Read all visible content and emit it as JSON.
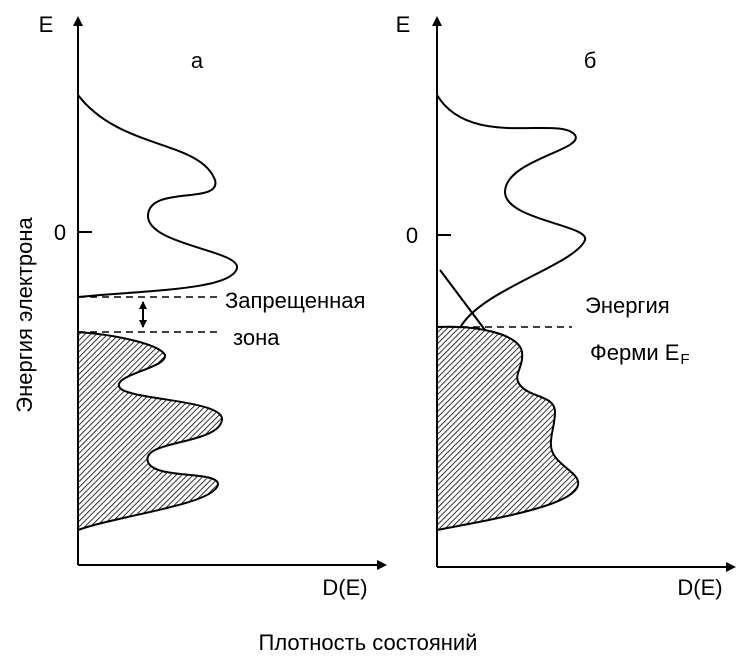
{
  "y_axis_label": "Энергия электрона",
  "x_axis_caption": "Плотность состояний",
  "panels": [
    {
      "label": "а",
      "y_axis": "E",
      "zero": "0",
      "x_axis": "D(E)",
      "annotation": [
        "Запрещенная",
        "зона"
      ]
    },
    {
      "label": "б",
      "y_axis": "E",
      "zero": "0",
      "x_axis": "D(E)",
      "annotation": [
        "Энергия",
        "Ферми E"
      ],
      "annotation_subscript": "F"
    }
  ]
}
